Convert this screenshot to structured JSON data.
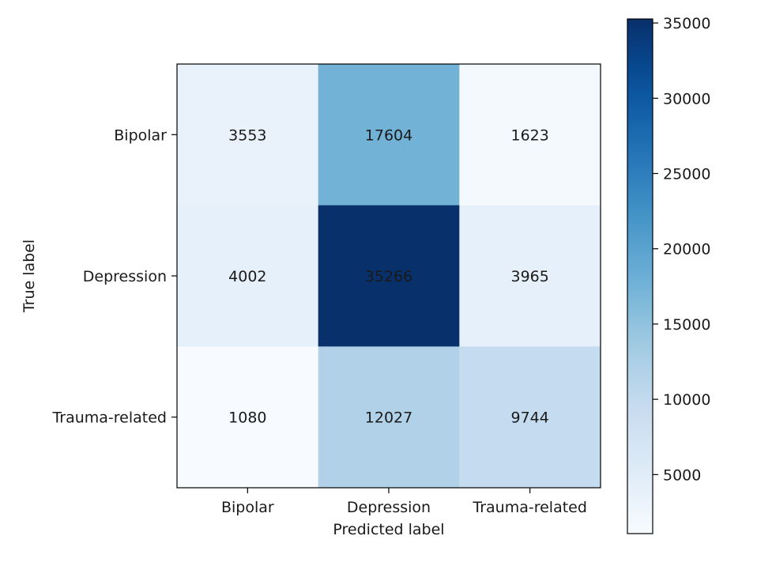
{
  "chart_data": {
    "type": "heatmap",
    "title": "",
    "xlabel": "Predicted label",
    "ylabel": "True label",
    "x_categories": [
      "Bipolar",
      "Depression",
      "Trauma-related"
    ],
    "y_categories": [
      "Bipolar",
      "Depression",
      "Trauma-related"
    ],
    "values": [
      [
        3553,
        17604,
        1623
      ],
      [
        4002,
        35266,
        3965
      ],
      [
        1080,
        12027,
        9744
      ]
    ],
    "colormap": "Blues",
    "colorbar": {
      "range": [
        1080,
        35266
      ],
      "ticks": [
        5000,
        10000,
        15000,
        20000,
        25000,
        30000,
        35000
      ],
      "tick_labels": [
        "5000",
        "10000",
        "15000",
        "20000",
        "25000",
        "30000",
        "35000"
      ]
    },
    "grid": false,
    "colors": {
      "cmap_low": "#f7fbff",
      "cmap_high": "#08306b",
      "text_on_light": "#08306b",
      "text_on_dark": "#f7fbff",
      "frame": "#000000"
    }
  }
}
